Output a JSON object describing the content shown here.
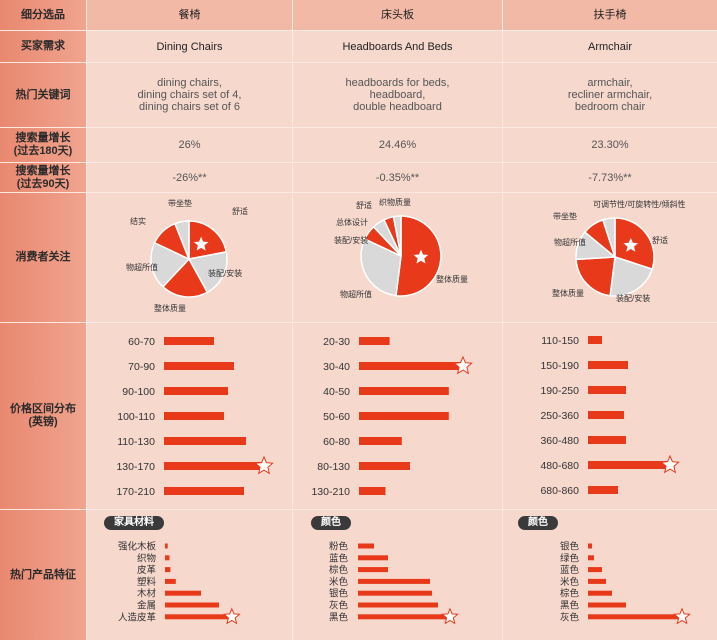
{
  "row_headers": {
    "segment": "细分选品",
    "demand": "买家需求",
    "keywords": "热门关键词",
    "growth180": "搜索量增长\n(过去180天)",
    "growth90": "搜索量增长\n(过去90天)",
    "concerns": "消费者关注",
    "price": "价格区间分布\n(英镑)",
    "features": "热门产品特征"
  },
  "columns": [
    {
      "segment": "餐椅",
      "demand": "Dining Chairs",
      "keywords": "dining chairs,\ndining chairs set of 4,\ndining chairs set of 6",
      "growth180": "26%",
      "growth90": "-26%**",
      "feature_tag": "家具材料"
    },
    {
      "segment": "床头板",
      "demand": "Headboards And Beds",
      "keywords": "headboards for beds,\nheadboard,\ndouble headboard",
      "growth180": "24.46%",
      "growth90": "-0.35%**",
      "feature_tag": "颜色"
    },
    {
      "segment": "扶手椅",
      "demand": "Armchair",
      "keywords": "armchair,\nrecliner armchair,\nbedroom chair",
      "growth180": "23.30%",
      "growth90": "-7.73%**",
      "feature_tag": "颜色"
    }
  ],
  "colors": {
    "accent": "#e8391a",
    "silver": "#d9d9d9",
    "header": "#ec9a84"
  },
  "chart_data": [
    {
      "type": "pie",
      "column": "餐椅",
      "slices": [
        {
          "label": "舒适",
          "value": 22,
          "color": "#e8391a",
          "star": true
        },
        {
          "label": "装配/安装",
          "value": 20,
          "color": "#d9d9d9"
        },
        {
          "label": "整体质量",
          "value": 20,
          "color": "#e8391a"
        },
        {
          "label": "物超所值",
          "value": 20,
          "color": "#d9d9d9"
        },
        {
          "label": "结实",
          "value": 12,
          "color": "#e8391a"
        },
        {
          "label": "带坐垫",
          "value": 6,
          "color": "#d9d9d9"
        }
      ]
    },
    {
      "type": "pie",
      "column": "床头板",
      "slices": [
        {
          "label": "整体质量",
          "value": 52,
          "color": "#e8391a",
          "star": true
        },
        {
          "label": "物超所值",
          "value": 30,
          "color": "#d9d9d9"
        },
        {
          "label": "装配/安装",
          "value": 6,
          "color": "#e8391a"
        },
        {
          "label": "总体设计",
          "value": 5,
          "color": "#d9d9d9"
        },
        {
          "label": "舒适",
          "value": 4,
          "color": "#e8391a"
        },
        {
          "label": "织物质量",
          "value": 3,
          "color": "#d9d9d9"
        }
      ]
    },
    {
      "type": "pie",
      "column": "扶手椅",
      "slices": [
        {
          "label": "舒适",
          "value": 30,
          "color": "#e8391a",
          "star": true
        },
        {
          "label": "装配/安装",
          "value": 22,
          "color": "#d9d9d9"
        },
        {
          "label": "整体质量",
          "value": 22,
          "color": "#e8391a"
        },
        {
          "label": "物超所值",
          "value": 12,
          "color": "#d9d9d9"
        },
        {
          "label": "带坐垫",
          "value": 9,
          "color": "#e8391a"
        },
        {
          "label": "可调节性/可旋转性/倾斜性",
          "value": 5,
          "color": "#d9d9d9"
        }
      ]
    },
    {
      "type": "bar",
      "column": "餐椅",
      "group": "price",
      "categories": [
        "60-70",
        "70-90",
        "90-100",
        "100-110",
        "110-130",
        "130-170",
        "170-210"
      ],
      "values": [
        50,
        70,
        64,
        60,
        82,
        98,
        80
      ],
      "star_index": 5
    },
    {
      "type": "bar",
      "column": "床头板",
      "group": "price",
      "categories": [
        "20-30",
        "30-40",
        "40-50",
        "50-60",
        "60-80",
        "80-130",
        "130-210"
      ],
      "values": [
        30,
        100,
        88,
        88,
        42,
        50,
        26
      ],
      "star_index": 1
    },
    {
      "type": "bar",
      "column": "扶手椅",
      "group": "price",
      "categories": [
        "110-150",
        "150-190",
        "190-250",
        "250-360",
        "360-480",
        "480-680",
        "680-860"
      ],
      "values": [
        14,
        40,
        38,
        36,
        38,
        80,
        30
      ],
      "star_index": 5
    },
    {
      "type": "bar",
      "column": "餐椅",
      "group": "features",
      "categories": [
        "强化木板",
        "织物",
        "皮革",
        "塑料",
        "木材",
        "金属",
        "人造皮革"
      ],
      "values": [
        3,
        5,
        6,
        12,
        40,
        60,
        72
      ],
      "star_index": 6
    },
    {
      "type": "bar",
      "column": "床头板",
      "group": "features",
      "categories": [
        "粉色",
        "蓝色",
        "棕色",
        "米色",
        "银色",
        "灰色",
        "黑色"
      ],
      "values": [
        16,
        30,
        30,
        72,
        74,
        80,
        90
      ],
      "star_index": 6
    },
    {
      "type": "bar",
      "column": "扶手椅",
      "group": "features",
      "categories": [
        "银色",
        "绿色",
        "蓝色",
        "米色",
        "棕色",
        "黑色",
        "灰色"
      ],
      "values": [
        4,
        6,
        14,
        18,
        24,
        38,
        92
      ],
      "star_index": 6
    }
  ]
}
